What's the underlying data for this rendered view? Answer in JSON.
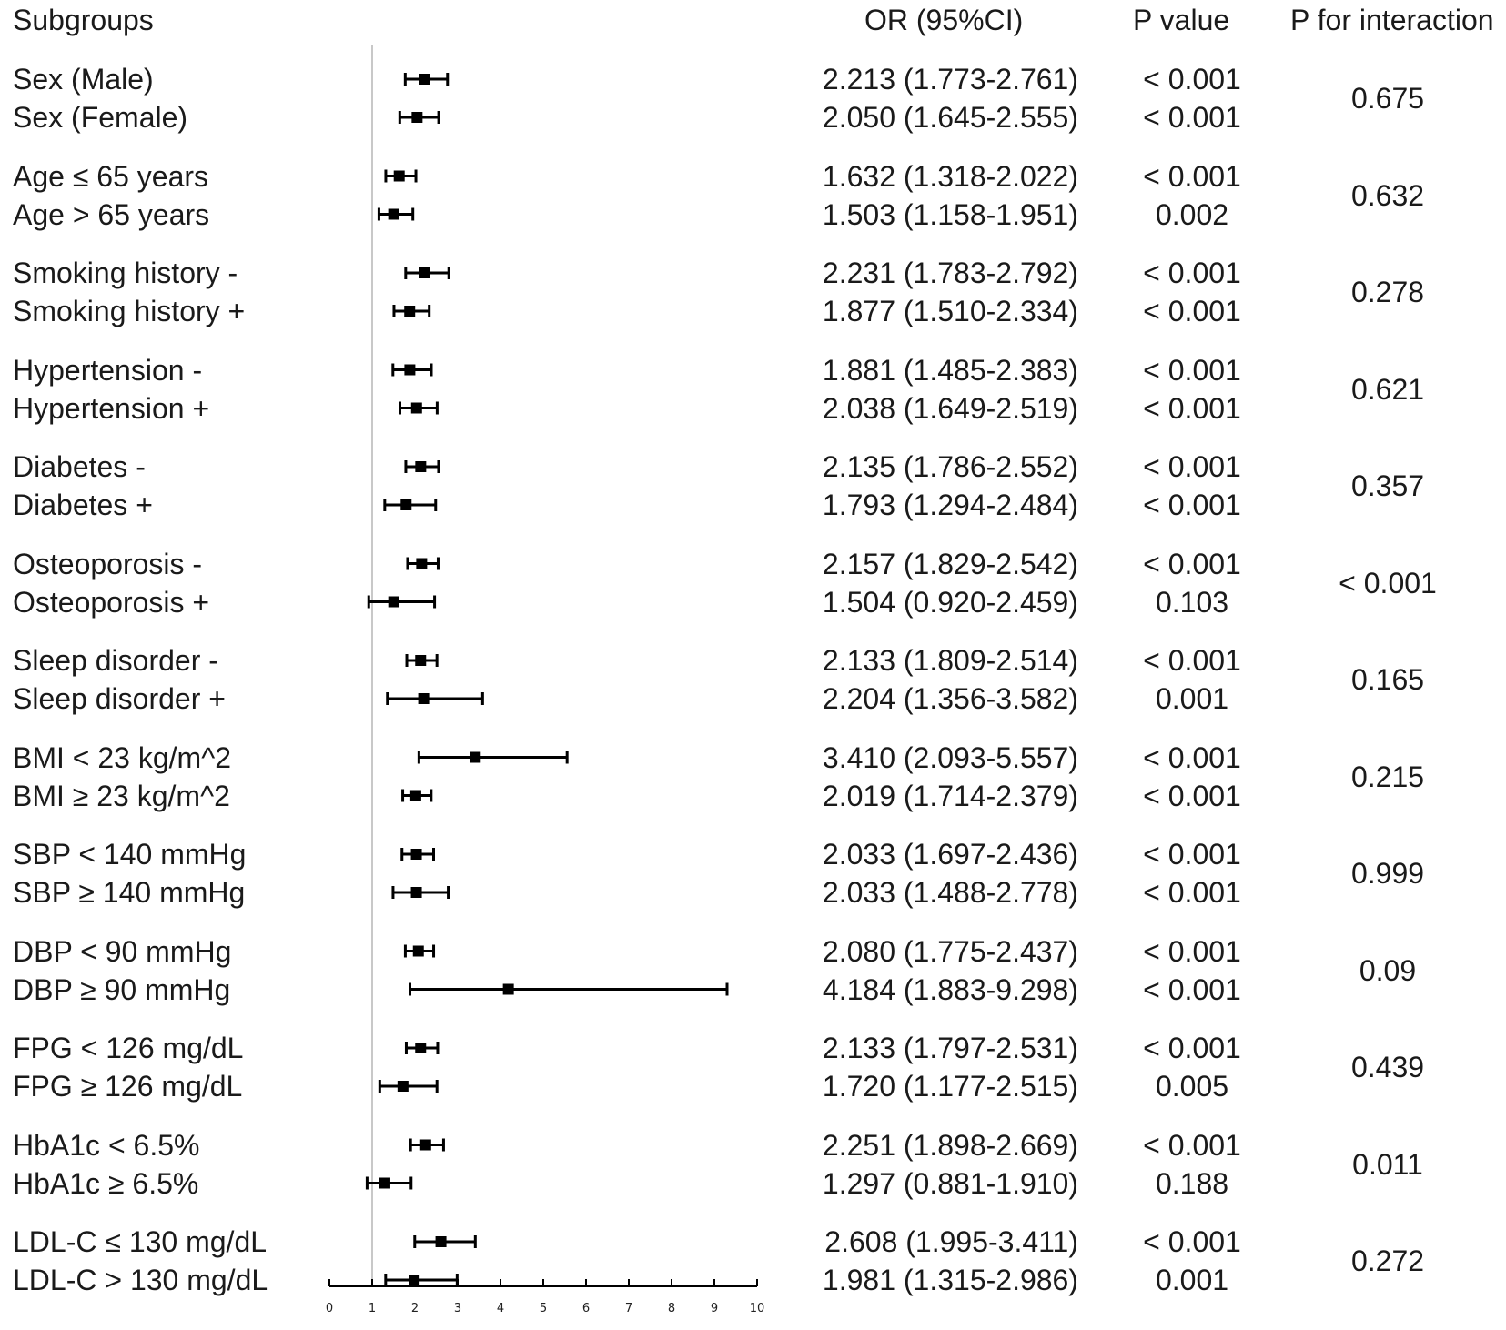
{
  "headers": {
    "subgroups": "Subgroups",
    "or": "OR (95%CI)",
    "pvalue": "P value",
    "pinteraction": "P for interaction"
  },
  "chart_data": {
    "type": "forest",
    "xlim": [
      0,
      10
    ],
    "xticks": [
      "0",
      "1",
      "2",
      "3",
      "4",
      "5",
      "6",
      "7",
      "8",
      "9",
      "10"
    ],
    "reference_line": 1,
    "groups": [
      {
        "p_interaction": "0.675",
        "rows": [
          {
            "label": "Sex (Male)",
            "or": 2.213,
            "lo": 1.773,
            "hi": 2.761,
            "ci_text": "2.213 (1.773-2.761)",
            "p": "< 0.001"
          },
          {
            "label": "Sex (Female)",
            "or": 2.05,
            "lo": 1.645,
            "hi": 2.555,
            "ci_text": "2.050 (1.645-2.555)",
            "p": "< 0.001"
          }
        ]
      },
      {
        "p_interaction": "0.632",
        "rows": [
          {
            "label": "Age ≤ 65 years",
            "or": 1.632,
            "lo": 1.318,
            "hi": 2.022,
            "ci_text": "1.632 (1.318-2.022)",
            "p": "< 0.001"
          },
          {
            "label": "Age > 65 years",
            "or": 1.503,
            "lo": 1.158,
            "hi": 1.951,
            "ci_text": "1.503 (1.158-1.951)",
            "p": "0.002"
          }
        ]
      },
      {
        "p_interaction": "0.278",
        "rows": [
          {
            "label": "Smoking history -",
            "or": 2.231,
            "lo": 1.783,
            "hi": 2.792,
            "ci_text": "2.231 (1.783-2.792)",
            "p": "< 0.001"
          },
          {
            "label": "Smoking history +",
            "or": 1.877,
            "lo": 1.51,
            "hi": 2.334,
            "ci_text": "1.877 (1.510-2.334)",
            "p": "< 0.001"
          }
        ]
      },
      {
        "p_interaction": "0.621",
        "rows": [
          {
            "label": "Hypertension -",
            "or": 1.881,
            "lo": 1.485,
            "hi": 2.383,
            "ci_text": "1.881 (1.485-2.383)",
            "p": "< 0.001"
          },
          {
            "label": "Hypertension +",
            "or": 2.038,
            "lo": 1.649,
            "hi": 2.519,
            "ci_text": "2.038 (1.649-2.519)",
            "p": "< 0.001"
          }
        ]
      },
      {
        "p_interaction": "0.357",
        "rows": [
          {
            "label": "Diabetes -",
            "or": 2.135,
            "lo": 1.786,
            "hi": 2.552,
            "ci_text": "2.135 (1.786-2.552)",
            "p": "< 0.001"
          },
          {
            "label": "Diabetes +",
            "or": 1.793,
            "lo": 1.294,
            "hi": 2.484,
            "ci_text": "1.793 (1.294-2.484)",
            "p": "< 0.001"
          }
        ]
      },
      {
        "p_interaction": "< 0.001",
        "rows": [
          {
            "label": "Osteoporosis -",
            "or": 2.157,
            "lo": 1.829,
            "hi": 2.542,
            "ci_text": "2.157 (1.829-2.542)",
            "p": "< 0.001"
          },
          {
            "label": "Osteoporosis +",
            "or": 1.504,
            "lo": 0.92,
            "hi": 2.459,
            "ci_text": "1.504 (0.920-2.459)",
            "p": "0.103"
          }
        ]
      },
      {
        "p_interaction": "0.165",
        "rows": [
          {
            "label": "Sleep disorder -",
            "or": 2.133,
            "lo": 1.809,
            "hi": 2.514,
            "ci_text": "2.133 (1.809-2.514)",
            "p": "< 0.001"
          },
          {
            "label": "Sleep disorder +",
            "or": 2.204,
            "lo": 1.356,
            "hi": 3.582,
            "ci_text": "2.204 (1.356-3.582)",
            "p": "0.001"
          }
        ]
      },
      {
        "p_interaction": "0.215",
        "rows": [
          {
            "label": "BMI < 23 kg/m^2",
            "or": 3.41,
            "lo": 2.093,
            "hi": 5.557,
            "ci_text": "3.410 (2.093-5.557)",
            "p": "< 0.001"
          },
          {
            "label": "BMI ≥ 23 kg/m^2",
            "or": 2.019,
            "lo": 1.714,
            "hi": 2.379,
            "ci_text": "2.019 (1.714-2.379)",
            "p": "< 0.001"
          }
        ]
      },
      {
        "p_interaction": "0.999",
        "rows": [
          {
            "label": "SBP < 140 mmHg",
            "or": 2.033,
            "lo": 1.697,
            "hi": 2.436,
            "ci_text": "2.033 (1.697-2.436)",
            "p": "< 0.001"
          },
          {
            "label": "SBP ≥ 140 mmHg",
            "or": 2.033,
            "lo": 1.488,
            "hi": 2.778,
            "ci_text": "2.033 (1.488-2.778)",
            "p": "< 0.001"
          }
        ]
      },
      {
        "p_interaction": "0.09",
        "rows": [
          {
            "label": "DBP < 90 mmHg",
            "or": 2.08,
            "lo": 1.775,
            "hi": 2.437,
            "ci_text": "2.080 (1.775-2.437)",
            "p": "< 0.001"
          },
          {
            "label": "DBP ≥ 90 mmHg",
            "or": 4.184,
            "lo": 1.883,
            "hi": 9.298,
            "ci_text": "4.184 (1.883-9.298)",
            "p": "< 0.001"
          }
        ]
      },
      {
        "p_interaction": "0.439",
        "rows": [
          {
            "label": "FPG < 126 mg/dL",
            "or": 2.133,
            "lo": 1.797,
            "hi": 2.531,
            "ci_text": "2.133 (1.797-2.531)",
            "p": "< 0.001"
          },
          {
            "label": "FPG ≥ 126 mg/dL",
            "or": 1.72,
            "lo": 1.177,
            "hi": 2.515,
            "ci_text": "1.720 (1.177-2.515)",
            "p": "0.005"
          }
        ]
      },
      {
        "p_interaction": "0.011",
        "rows": [
          {
            "label": "HbA1c < 6.5%",
            "or": 2.251,
            "lo": 1.898,
            "hi": 2.669,
            "ci_text": "2.251 (1.898-2.669)",
            "p": "< 0.001"
          },
          {
            "label": "HbA1c ≥ 6.5%",
            "or": 1.297,
            "lo": 0.881,
            "hi": 1.91,
            "ci_text": "1.297 (0.881-1.910)",
            "p": "0.188"
          }
        ]
      },
      {
        "p_interaction": "0.272",
        "rows": [
          {
            "label": "LDL-C ≤ 130 mg/dL",
            "or": 2.608,
            "lo": 1.995,
            "hi": 3.411,
            "ci_text": "2.608 (1.995-3.411)",
            "p": "< 0.001"
          },
          {
            "label": "LDL-C > 130 mg/dL",
            "or": 1.981,
            "lo": 1.315,
            "hi": 2.986,
            "ci_text": "1.981 (1.315-2.986)",
            "p": "0.001"
          }
        ]
      }
    ]
  }
}
